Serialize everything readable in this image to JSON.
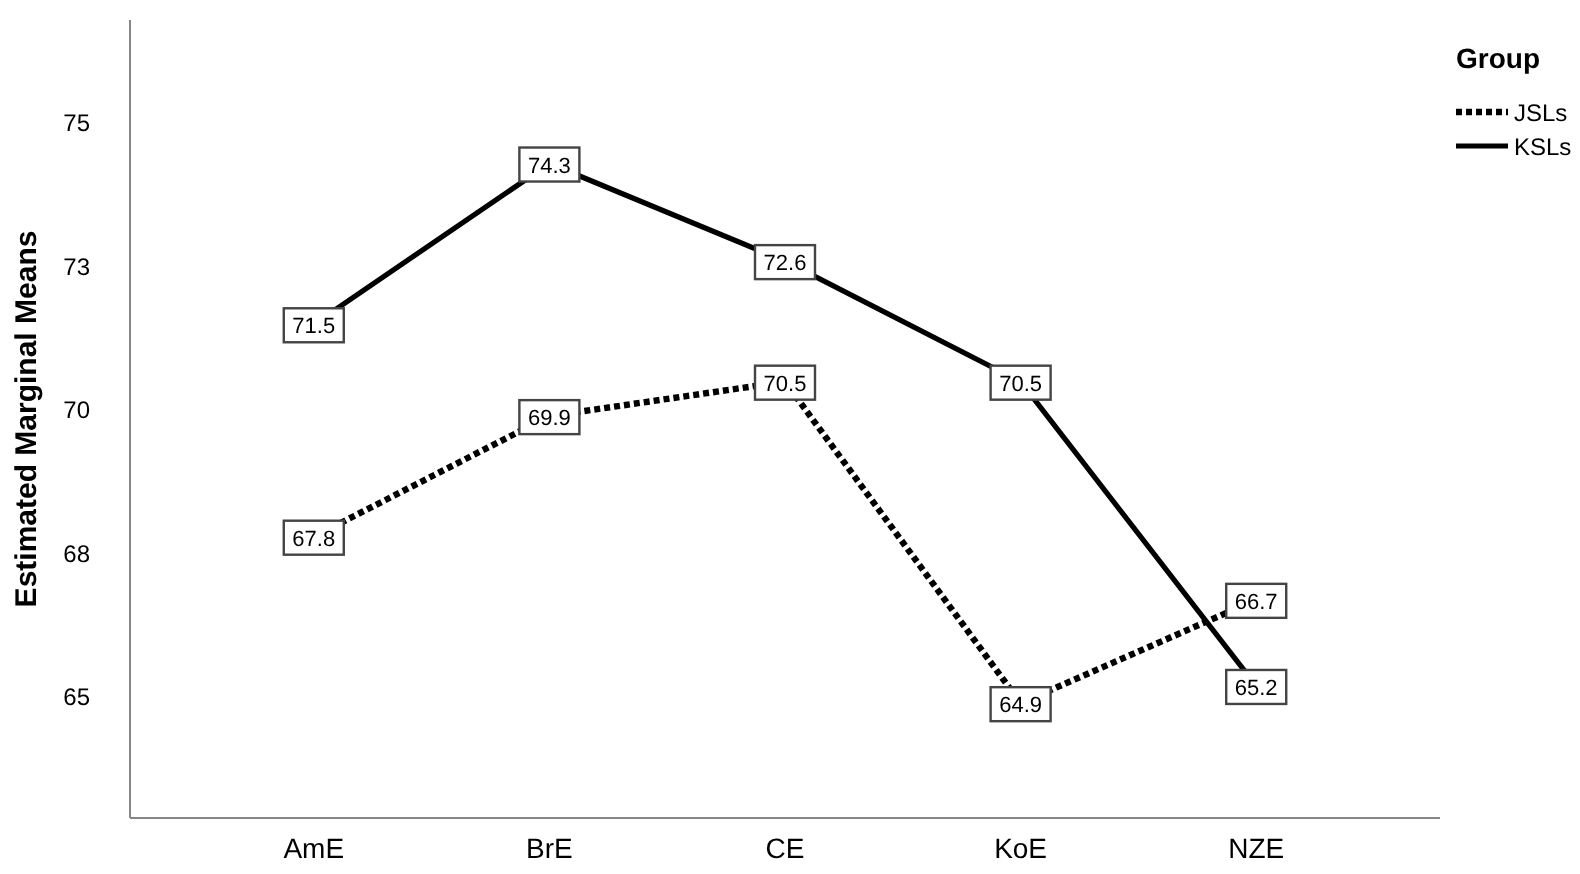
{
  "chart_data": {
    "type": "line",
    "ylabel": "Estimated Marginal Means",
    "legend_title": "Group",
    "categories": [
      "AmE",
      "BrE",
      "CE",
      "KoE",
      "NZE"
    ],
    "series": [
      {
        "name": "JSLs",
        "color": "#000000",
        "line_style": "dotted",
        "values": [
          67.8,
          69.9,
          70.5,
          64.9,
          66.7
        ]
      },
      {
        "name": "KSLs",
        "color": "#000000",
        "line_style": "solid",
        "values": [
          71.5,
          74.3,
          72.6,
          70.5,
          65.2
        ]
      }
    ],
    "ylim": [
      62.9,
      76.8
    ],
    "yticks": [
      65,
      {
        "value": 67.5,
        "label": "68"
      },
      70,
      {
        "value": 72.5,
        "label": "73"
      },
      75
    ],
    "grid": false,
    "legend": "top right",
    "marker": "square",
    "data_labels": true
  }
}
